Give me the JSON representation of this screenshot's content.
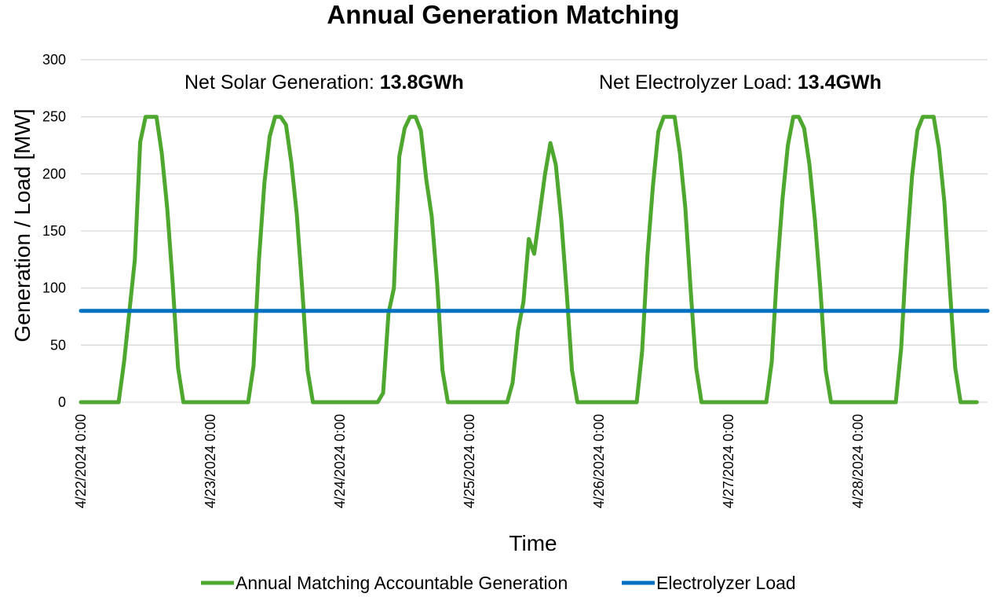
{
  "chart_data": {
    "type": "line",
    "title": "Annual Generation Matching",
    "xlabel": "Time",
    "ylabel": "Generation / Load [MW]",
    "ylim": [
      0,
      300
    ],
    "yticks": [
      "0",
      "50",
      "100",
      "150",
      "200",
      "250",
      "300"
    ],
    "x_tick_labels": [
      "4/22/2024 0:00",
      "4/23/2024 0:00",
      "4/24/2024 0:00",
      "4/25/2024 0:00",
      "4/26/2024 0:00",
      "4/27/2024 0:00",
      "4/28/2024 0:00"
    ],
    "x_unit": "hours from 4/22/2024 0:00",
    "xlim": [
      0,
      168
    ],
    "grid": true,
    "legend_position": "bottom",
    "annotations": [
      {
        "label": "Net Solar Generation: ",
        "value": "13.8GWh"
      },
      {
        "label": "Net Electrolyzer Load: ",
        "value": "13.4GWh"
      }
    ],
    "series": [
      {
        "name": "Annual Matching Accountable Generation",
        "color": "#4ea72e",
        "points": [
          [
            0,
            0
          ],
          [
            7,
            0
          ],
          [
            8,
            35
          ],
          [
            9,
            80
          ],
          [
            10,
            125
          ],
          [
            11,
            228
          ],
          [
            12,
            250
          ],
          [
            13,
            250
          ],
          [
            14,
            250
          ],
          [
            15,
            218
          ],
          [
            16,
            170
          ],
          [
            17,
            105
          ],
          [
            18,
            30
          ],
          [
            19,
            0
          ],
          [
            24,
            0
          ],
          [
            31,
            0
          ],
          [
            32,
            32
          ],
          [
            33,
            125
          ],
          [
            34,
            192
          ],
          [
            35,
            233
          ],
          [
            36,
            250
          ],
          [
            37,
            250
          ],
          [
            38,
            243
          ],
          [
            39,
            210
          ],
          [
            40,
            165
          ],
          [
            41,
            100
          ],
          [
            42,
            28
          ],
          [
            43,
            0
          ],
          [
            48,
            0
          ],
          [
            55,
            0
          ],
          [
            56,
            8
          ],
          [
            57,
            78
          ],
          [
            58,
            100
          ],
          [
            59,
            215
          ],
          [
            60,
            240
          ],
          [
            61,
            250
          ],
          [
            62,
            250
          ],
          [
            63,
            238
          ],
          [
            64,
            195
          ],
          [
            65,
            163
          ],
          [
            66,
            105
          ],
          [
            67,
            28
          ],
          [
            68,
            0
          ],
          [
            72,
            0
          ],
          [
            79,
            0
          ],
          [
            80,
            17
          ],
          [
            81,
            63
          ],
          [
            82,
            88
          ],
          [
            83,
            143
          ],
          [
            84,
            130
          ],
          [
            85,
            165
          ],
          [
            86,
            200
          ],
          [
            87,
            227
          ],
          [
            88,
            208
          ],
          [
            89,
            160
          ],
          [
            90,
            97
          ],
          [
            91,
            28
          ],
          [
            92,
            0
          ],
          [
            96,
            0
          ],
          [
            103,
            0
          ],
          [
            104,
            45
          ],
          [
            105,
            130
          ],
          [
            106,
            190
          ],
          [
            107,
            237
          ],
          [
            108,
            250
          ],
          [
            109,
            250
          ],
          [
            110,
            250
          ],
          [
            111,
            218
          ],
          [
            112,
            170
          ],
          [
            113,
            97
          ],
          [
            114,
            30
          ],
          [
            115,
            0
          ],
          [
            120,
            0
          ],
          [
            127,
            0
          ],
          [
            128,
            35
          ],
          [
            129,
            115
          ],
          [
            130,
            178
          ],
          [
            131,
            225
          ],
          [
            132,
            250
          ],
          [
            133,
            250
          ],
          [
            134,
            240
          ],
          [
            135,
            208
          ],
          [
            136,
            160
          ],
          [
            137,
            100
          ],
          [
            138,
            28
          ],
          [
            139,
            0
          ],
          [
            144,
            0
          ],
          [
            151,
            0
          ],
          [
            152,
            48
          ],
          [
            153,
            133
          ],
          [
            154,
            198
          ],
          [
            155,
            238
          ],
          [
            156,
            250
          ],
          [
            157,
            250
          ],
          [
            158,
            250
          ],
          [
            159,
            222
          ],
          [
            160,
            175
          ],
          [
            161,
            100
          ],
          [
            162,
            30
          ],
          [
            163,
            0
          ],
          [
            166,
            0
          ]
        ]
      },
      {
        "name": "Electrolyzer Load",
        "color": "#0070c0",
        "points": [
          [
            0,
            80
          ],
          [
            168,
            80
          ]
        ]
      }
    ]
  }
}
